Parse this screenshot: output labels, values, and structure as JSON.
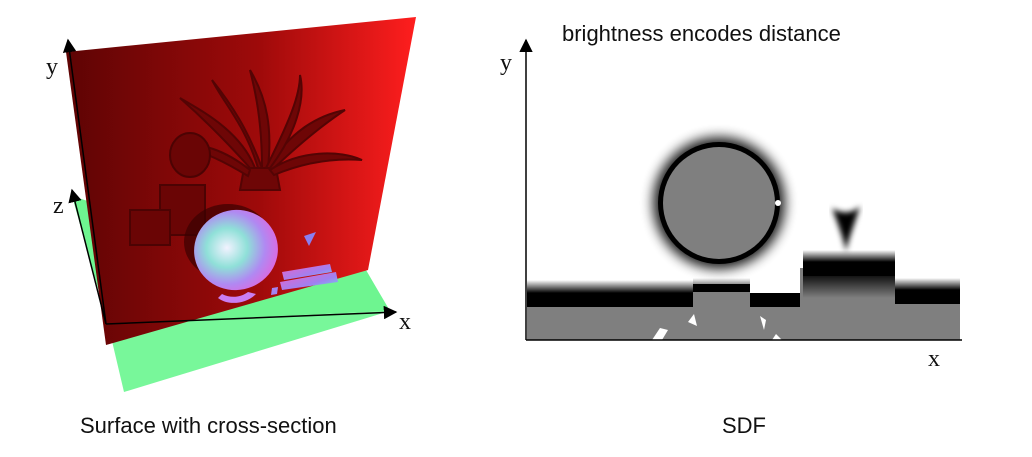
{
  "left_panel": {
    "caption": "Surface with cross-section",
    "axis_labels": {
      "x": "x",
      "y": "y",
      "z": "z"
    },
    "colors": {
      "wall": "#9e0a0a",
      "wall_edge": "#ff1e1e",
      "floor": "#6ef590"
    }
  },
  "right_panel": {
    "title": "brightness encodes distance",
    "caption": "SDF",
    "axis_labels": {
      "x": "x",
      "y": "y"
    },
    "colors": {
      "interior": "#7f7f7f",
      "near_surface": "#000000",
      "far": "#ffffff"
    }
  }
}
